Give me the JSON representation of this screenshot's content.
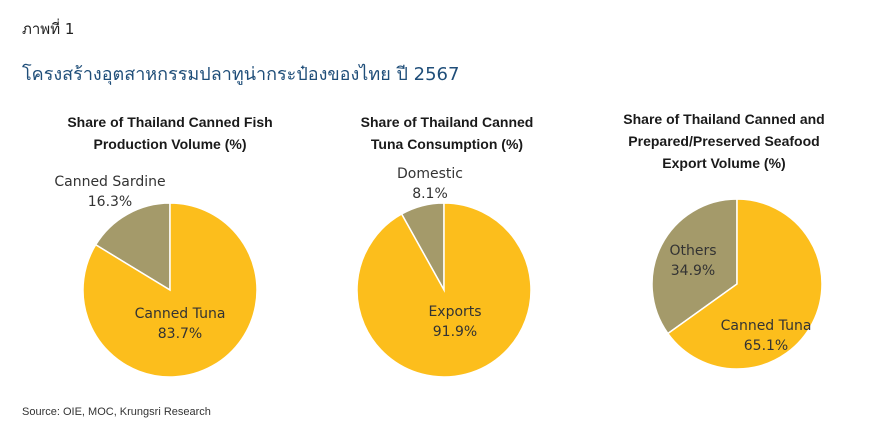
{
  "figure_label": "ภาพที่ 1",
  "figure_title": "โครงสร้างอุตสาหกรรมปลาทูน่ากระป๋องของไทย ปี 2567",
  "source": "Source: OIE, MOC, Krungsri Research",
  "colors": {
    "primary": "#fcbe1c",
    "secondary": "#a49a6a",
    "title": "#1f4e79"
  },
  "chart_data": [
    {
      "type": "pie",
      "title_lines": [
        "Share of Thailand Canned Fish",
        "Production Volume (%)"
      ],
      "slices": [
        {
          "name": "Canned Sardine",
          "value": 16.3,
          "label": "16.3%",
          "color": "#a49a6a"
        },
        {
          "name": "Canned Tuna",
          "value": 83.7,
          "label": "83.7%",
          "color": "#fcbe1c"
        }
      ]
    },
    {
      "type": "pie",
      "title_lines": [
        "Share of Thailand Canned",
        "Tuna Consumption (%)"
      ],
      "slices": [
        {
          "name": "Domestic",
          "value": 8.1,
          "label": "8.1%",
          "color": "#a49a6a"
        },
        {
          "name": "Exports",
          "value": 91.9,
          "label": "91.9%",
          "color": "#fcbe1c"
        }
      ]
    },
    {
      "type": "pie",
      "title_lines": [
        "Share of Thailand Canned and",
        "Prepared/Preserved Seafood",
        "Export Volume (%)"
      ],
      "slices": [
        {
          "name": "Others",
          "value": 34.9,
          "label": "34.9%",
          "color": "#a49a6a"
        },
        {
          "name": "Canned Tuna",
          "value": 65.1,
          "label": "65.1%",
          "color": "#fcbe1c"
        }
      ]
    }
  ]
}
